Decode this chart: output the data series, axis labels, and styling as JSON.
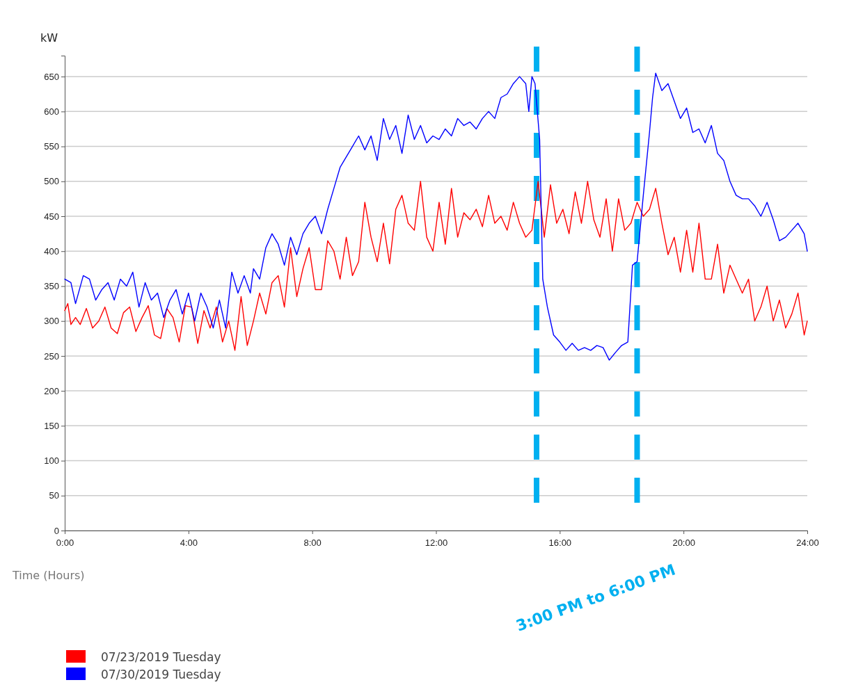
{
  "chart_data": {
    "type": "line",
    "ylabel": "kW",
    "xlabel": "Time (Hours)",
    "xlim": [
      0,
      24
    ],
    "xticks": [
      {
        "value": 0,
        "label": "0:00"
      },
      {
        "value": 4,
        "label": "4:00"
      },
      {
        "value": 8,
        "label": "8:00"
      },
      {
        "value": 12,
        "label": "12:00"
      },
      {
        "value": 16,
        "label": "16:00"
      },
      {
        "value": 20,
        "label": "20:00"
      },
      {
        "value": 24,
        "label": "24:00"
      }
    ],
    "ylim": [
      0,
      680
    ],
    "yticks": [
      0,
      50,
      100,
      150,
      200,
      250,
      300,
      350,
      400,
      450,
      500,
      550,
      600,
      650
    ],
    "grid": "y",
    "legend": "bottom left",
    "ref_lines": [
      {
        "axis": "x",
        "value": 15.25,
        "label": null,
        "color": "#00b0f0",
        "line_style": "dashed"
      },
      {
        "axis": "x",
        "value": 18.5,
        "label": null,
        "color": "#00b0f0",
        "line_style": "dashed"
      }
    ],
    "annotations": [
      "3:00 PM to 6:00 PM"
    ],
    "series": [
      {
        "name": "07/23/2019 Tuesday",
        "color": "#ff0000",
        "x": [
          0,
          0.1,
          0.2,
          0.35,
          0.5,
          0.7,
          0.9,
          1.1,
          1.3,
          1.5,
          1.7,
          1.9,
          2.1,
          2.3,
          2.5,
          2.7,
          2.9,
          3.1,
          3.3,
          3.5,
          3.7,
          3.9,
          4.1,
          4.3,
          4.5,
          4.7,
          4.9,
          5.1,
          5.3,
          5.5,
          5.7,
          5.9,
          6.1,
          6.3,
          6.5,
          6.7,
          6.9,
          7.1,
          7.3,
          7.5,
          7.7,
          7.9,
          8.1,
          8.3,
          8.5,
          8.7,
          8.9,
          9.1,
          9.3,
          9.5,
          9.7,
          9.9,
          10.1,
          10.3,
          10.5,
          10.7,
          10.9,
          11.1,
          11.3,
          11.5,
          11.7,
          11.9,
          12.1,
          12.3,
          12.5,
          12.7,
          12.9,
          13.1,
          13.3,
          13.5,
          13.7,
          13.9,
          14.1,
          14.3,
          14.5,
          14.7,
          14.9,
          15.1,
          15.3,
          15.5,
          15.7,
          15.9,
          16.1,
          16.3,
          16.5,
          16.7,
          16.9,
          17.1,
          17.3,
          17.5,
          17.7,
          17.9,
          18.1,
          18.3,
          18.5,
          18.7,
          18.9,
          19.1,
          19.3,
          19.5,
          19.7,
          19.9,
          20.1,
          20.3,
          20.5,
          20.7,
          20.9,
          21.1,
          21.3,
          21.5,
          21.7,
          21.9,
          22.1,
          22.3,
          22.5,
          22.7,
          22.9,
          23.1,
          23.3,
          23.5,
          23.7,
          23.9,
          24
        ],
        "values": [
          315,
          325,
          295,
          305,
          295,
          318,
          290,
          300,
          320,
          290,
          282,
          312,
          320,
          285,
          305,
          322,
          280,
          275,
          318,
          305,
          270,
          322,
          320,
          268,
          315,
          290,
          320,
          270,
          300,
          258,
          335,
          265,
          300,
          340,
          310,
          355,
          365,
          320,
          405,
          335,
          375,
          405,
          345,
          345,
          415,
          400,
          360,
          420,
          365,
          385,
          470,
          420,
          385,
          440,
          382,
          460,
          480,
          440,
          430,
          500,
          420,
          400,
          470,
          410,
          490,
          420,
          455,
          445,
          460,
          435,
          480,
          440,
          450,
          430,
          470,
          440,
          420,
          430,
          500,
          420,
          495,
          440,
          460,
          425,
          485,
          440,
          500,
          445,
          420,
          475,
          400,
          475,
          430,
          440,
          470,
          450,
          460,
          490,
          440,
          395,
          420,
          370,
          430,
          370,
          440,
          360,
          360,
          410,
          340,
          380,
          360,
          340,
          360,
          300,
          320,
          350,
          300,
          330,
          290,
          310,
          340,
          280,
          300
        ]
      },
      {
        "name": "07/30/2019 Tuesday",
        "color": "#0000ff",
        "x": [
          0,
          0.2,
          0.35,
          0.6,
          0.8,
          1.0,
          1.2,
          1.4,
          1.6,
          1.8,
          2.0,
          2.2,
          2.4,
          2.6,
          2.8,
          3.0,
          3.2,
          3.4,
          3.6,
          3.8,
          4.0,
          4.2,
          4.4,
          4.6,
          4.8,
          5.0,
          5.2,
          5.4,
          5.6,
          5.8,
          6.0,
          6.1,
          6.3,
          6.5,
          6.7,
          6.9,
          7.1,
          7.3,
          7.5,
          7.7,
          7.9,
          8.1,
          8.3,
          8.5,
          8.7,
          8.9,
          9.1,
          9.3,
          9.5,
          9.7,
          9.9,
          10.1,
          10.3,
          10.5,
          10.7,
          10.9,
          11.1,
          11.3,
          11.5,
          11.7,
          11.9,
          12.1,
          12.3,
          12.5,
          12.7,
          12.9,
          13.1,
          13.3,
          13.5,
          13.7,
          13.9,
          14.1,
          14.3,
          14.5,
          14.7,
          14.9,
          15.0,
          15.1,
          15.2,
          15.35,
          15.45,
          15.6,
          15.8,
          16.0,
          16.2,
          16.4,
          16.6,
          16.8,
          17.0,
          17.2,
          17.4,
          17.6,
          17.8,
          18.0,
          18.2,
          18.35,
          18.5,
          18.7,
          18.9,
          19.0,
          19.1,
          19.3,
          19.5,
          19.7,
          19.9,
          20.1,
          20.3,
          20.5,
          20.7,
          20.9,
          21.1,
          21.3,
          21.5,
          21.7,
          21.9,
          22.1,
          22.3,
          22.5,
          22.7,
          22.9,
          23.1,
          23.3,
          23.5,
          23.7,
          23.9,
          24.0
        ],
        "values": [
          360,
          355,
          325,
          365,
          360,
          330,
          345,
          355,
          330,
          360,
          350,
          370,
          320,
          355,
          330,
          340,
          305,
          330,
          345,
          310,
          340,
          300,
          340,
          320,
          290,
          330,
          290,
          370,
          340,
          365,
          340,
          375,
          360,
          405,
          425,
          410,
          380,
          420,
          395,
          425,
          440,
          450,
          425,
          460,
          490,
          520,
          535,
          550,
          565,
          545,
          565,
          530,
          590,
          560,
          580,
          540,
          595,
          560,
          580,
          555,
          565,
          560,
          575,
          565,
          590,
          580,
          585,
          575,
          590,
          600,
          590,
          620,
          625,
          640,
          650,
          640,
          600,
          650,
          640,
          560,
          360,
          320,
          280,
          270,
          258,
          268,
          258,
          262,
          258,
          265,
          262,
          244,
          255,
          265,
          270,
          380,
          385,
          480,
          570,
          620,
          655,
          630,
          640,
          615,
          590,
          605,
          570,
          575,
          555,
          580,
          540,
          530,
          500,
          480,
          475,
          475,
          465,
          450,
          470,
          445,
          415,
          420,
          430,
          440,
          425,
          400
        ]
      }
    ]
  }
}
